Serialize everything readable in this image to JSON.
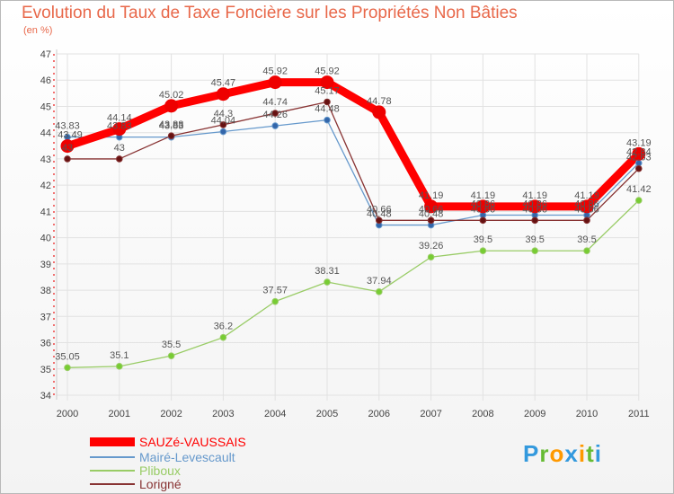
{
  "chart_data": {
    "type": "line",
    "title": "Evolution du Taux de Taxe Foncière sur les Propriétés Non Bâties",
    "subtitle": "(en %)",
    "categories": [
      "2000",
      "2001",
      "2002",
      "2003",
      "2004",
      "2005",
      "2006",
      "2007",
      "2008",
      "2009",
      "2010",
      "2011"
    ],
    "ylim": [
      34,
      47
    ],
    "yticks": [
      "34",
      "35",
      "36",
      "37",
      "38",
      "39",
      "40",
      "41",
      "42",
      "43",
      "44",
      "45",
      "46",
      "47"
    ],
    "grid": true,
    "legend_position": "bottom-left",
    "series": [
      {
        "name": "SAUZé-VAUSSAIS",
        "color": "#ff0000",
        "values": [
          43.49,
          44.14,
          45.02,
          45.47,
          45.92,
          45.92,
          44.78,
          41.19,
          41.19,
          41.19,
          41.19,
          43.19
        ],
        "labels": [
          "43.49",
          "44.14",
          "45.02",
          "45.47",
          "45.92",
          "45.92",
          "44.78",
          "41.19",
          "41.19",
          "41.19",
          "41.19",
          "43.19"
        ]
      },
      {
        "name": "Mairé-Levescault",
        "color": "#6699cc",
        "values": [
          43.83,
          43.83,
          43.83,
          44.04,
          44.26,
          44.48,
          40.48,
          40.48,
          40.86,
          40.86,
          40.86,
          42.84
        ],
        "labels": [
          "43.83",
          "43.83",
          "43.83",
          "44.04",
          "44.26",
          "44.48",
          "40.48",
          "40.48",
          "40.86",
          "40.86",
          "40.86",
          "42.84"
        ]
      },
      {
        "name": "Pliboux",
        "color": "#99cc66",
        "values": [
          35.05,
          35.1,
          35.5,
          36.2,
          37.57,
          38.31,
          37.94,
          39.26,
          39.5,
          39.5,
          39.5,
          41.42
        ],
        "labels": [
          "35.05",
          "35.1",
          "35.5",
          "36.2",
          "37.57",
          "38.31",
          "37.94",
          "39.26",
          "39.5",
          "39.5",
          "39.5",
          "41.42"
        ]
      },
      {
        "name": "Lorigné",
        "color": "#883333",
        "values": [
          43,
          43,
          43.88,
          44.3,
          44.74,
          45.17,
          40.66,
          40.66,
          40.66,
          40.66,
          40.66,
          42.63
        ],
        "labels": [
          "43",
          "43",
          "43.88",
          "44.3",
          "44.74",
          "45.17",
          "40.66",
          "40.66",
          "40.66",
          "40.66",
          "40.66",
          "42.63"
        ]
      }
    ]
  },
  "logo": {
    "letters": [
      "P",
      "r",
      "o",
      "x",
      "i",
      "t",
      "i"
    ],
    "colors": [
      "#3399dd",
      "#66bb33",
      "#ff9900",
      "#3399dd",
      "#ff9900",
      "#66bb33",
      "#3399dd"
    ]
  }
}
